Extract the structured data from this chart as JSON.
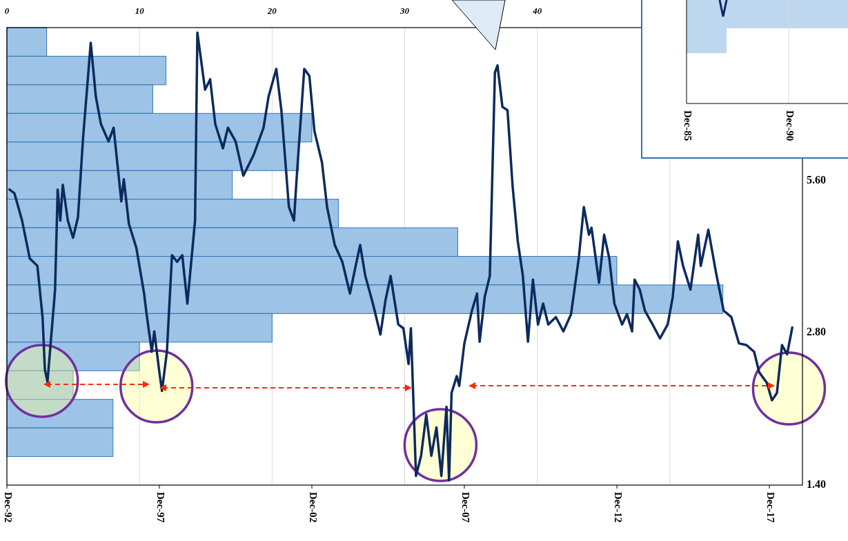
{
  "chart_data": [
    {
      "type": "bar",
      "orientation": "horizontal",
      "categories": [
        null,
        null,
        null,
        null,
        null,
        null,
        null,
        null,
        null,
        null,
        null,
        null,
        null,
        null,
        null
      ],
      "values": [
        3,
        12,
        11,
        23,
        22,
        17,
        25,
        34,
        46,
        54,
        20,
        10,
        5,
        8,
        8
      ],
      "color": "#9dc3e6",
      "xlim": [
        0,
        60
      ],
      "xticks": [
        0,
        10,
        20,
        30,
        40,
        {
          "value": 50,
          "label": null
        }
      ],
      "grid": "x",
      "tick_labels": "x"
    },
    {
      "type": "line",
      "xlim": [
        "1992-12",
        "2019-01"
      ],
      "xticks": [
        {
          "value": "1992-12",
          "label": "Dec-92"
        },
        {
          "value": "1997-12",
          "label": "Dec-97"
        },
        {
          "value": "2002-12",
          "label": "Dec-02"
        },
        {
          "value": "2007-12",
          "label": "Dec-07"
        },
        {
          "value": "2012-12",
          "label": "Dec-12"
        },
        {
          "value": "2017-12",
          "label": "Dec-17"
        }
      ],
      "ylim": [
        1.4,
        11.25
      ],
      "yticks": [
        {
          "value": 1.4,
          "label": "1.40"
        },
        {
          "value": 2.8,
          "label": "2.80"
        },
        {
          "value": 5.6,
          "label": "5.60"
        }
      ],
      "log": true,
      "series": [
        {
          "color": "#0d2a5e",
          "x": [
            "1993-01",
            "1993-03",
            "1993-06",
            "1993-09",
            "1993-12",
            "1994-02",
            "1994-03",
            "1994-04",
            "1994-07",
            "1994-08",
            "1994-09",
            "1994-10",
            "1994-12",
            "1995-02",
            "1995-04",
            "1995-06",
            "1995-09",
            "1995-11",
            "1996-01",
            "1996-04",
            "1996-06",
            "1996-09",
            "1996-10",
            "1996-12",
            "1997-03",
            "1997-06",
            "1997-07",
            "1997-09",
            "1997-10",
            "1997-12",
            "1998-01",
            "1998-03",
            "1998-05",
            "1998-07",
            "1998-09",
            "1998-11",
            "1999-02",
            "1999-03",
            "1999-06",
            "1999-08",
            "1999-10",
            "2000-01",
            "2000-03",
            "2000-06",
            "2000-09",
            "2001-01",
            "2001-05",
            "2001-07",
            "2001-10",
            "2001-12",
            "2002-03",
            "2002-05",
            "2002-06",
            "2002-09",
            "2002-11",
            "2003-01",
            "2003-04",
            "2003-06",
            "2003-09",
            "2003-12",
            "2004-03",
            "2004-05",
            "2004-07",
            "2004-09",
            "2004-12",
            "2005-03",
            "2005-05",
            "2005-07",
            "2005-10",
            "2005-12",
            "2006-02",
            "2006-03",
            "2006-04",
            "2006-05",
            "2006-07",
            "2006-09",
            "2006-11",
            "2007-01",
            "2007-03",
            "2007-05",
            "2007-06",
            "2007-07",
            "2007-09",
            "2007-10",
            "2007-12",
            "2008-03",
            "2008-05",
            "2008-06",
            "2008-08",
            "2008-10",
            "2008-12",
            "2009-01",
            "2009-03",
            "2009-05",
            "2009-07",
            "2009-09",
            "2009-11",
            "2010-01",
            "2010-03",
            "2010-05",
            "2010-07",
            "2010-09",
            "2010-12",
            "2011-03",
            "2011-06",
            "2011-09",
            "2011-11",
            "2012-01",
            "2012-02",
            "2012-05",
            "2012-07",
            "2012-09",
            "2012-11",
            "2013-02",
            "2013-04",
            "2013-06",
            "2013-07",
            "2013-09",
            "2013-11",
            "2014-02",
            "2014-05",
            "2014-08",
            "2014-10",
            "2014-12",
            "2015-02",
            "2015-05",
            "2015-08",
            "2015-09",
            "2015-12",
            "2016-03",
            "2016-06",
            "2016-09",
            "2016-12",
            "2017-03",
            "2017-06",
            "2017-08",
            "2017-11",
            "2018-01",
            "2018-03",
            "2018-05",
            "2018-07",
            "2018-09"
          ],
          "values": [
            5.38,
            5.29,
            4.67,
            3.93,
            3.8,
            3.01,
            2.37,
            2.24,
            3.41,
            5.38,
            4.67,
            5.5,
            4.67,
            4.32,
            4.74,
            6.8,
            10.5,
            8.22,
            7.25,
            6.7,
            7.13,
            5.1,
            5.64,
            4.6,
            4.12,
            3.35,
            3.05,
            2.57,
            2.82,
            2.34,
            2.15,
            2.57,
            3.99,
            3.87,
            3.99,
            3.2,
            4.67,
            11.0,
            8.48,
            8.89,
            7.25,
            6.49,
            7.13,
            6.7,
            5.73,
            6.29,
            7.13,
            8.22,
            9.32,
            7.72,
            4.97,
            4.67,
            5.64,
            9.32,
            9.03,
            7.02,
            6.09,
            4.97,
            4.18,
            3.87,
            3.35,
            3.75,
            4.18,
            3.63,
            3.2,
            2.78,
            3.25,
            3.63,
            2.91,
            2.86,
            2.43,
            2.86,
            2.03,
            1.46,
            1.6,
            1.93,
            1.6,
            1.82,
            1.46,
            2.0,
            1.43,
            2.13,
            2.3,
            2.2,
            2.67,
            3.1,
            3.35,
            2.69,
            3.3,
            3.63,
            9.17,
            9.47,
            7.84,
            7.72,
            5.46,
            4.25,
            3.63,
            2.69,
            3.57,
            2.91,
            3.2,
            2.91,
            3.01,
            2.82,
            3.05,
            3.93,
            4.97,
            4.38,
            4.52,
            3.52,
            4.38,
            3.93,
            3.2,
            2.91,
            3.05,
            2.82,
            3.57,
            3.41,
            3.1,
            2.91,
            2.73,
            2.91,
            3.3,
            4.25,
            3.8,
            3.41,
            4.38,
            3.8,
            4.48,
            3.69,
            3.1,
            3.01,
            2.67,
            2.65,
            2.57,
            2.34,
            2.23,
            2.06,
            2.13,
            2.65,
            2.54,
            2.87
          ]
        }
      ]
    },
    {
      "type": "other",
      "annotations": [
        "Dec-85",
        "Dec-90"
      ]
    }
  ]
}
